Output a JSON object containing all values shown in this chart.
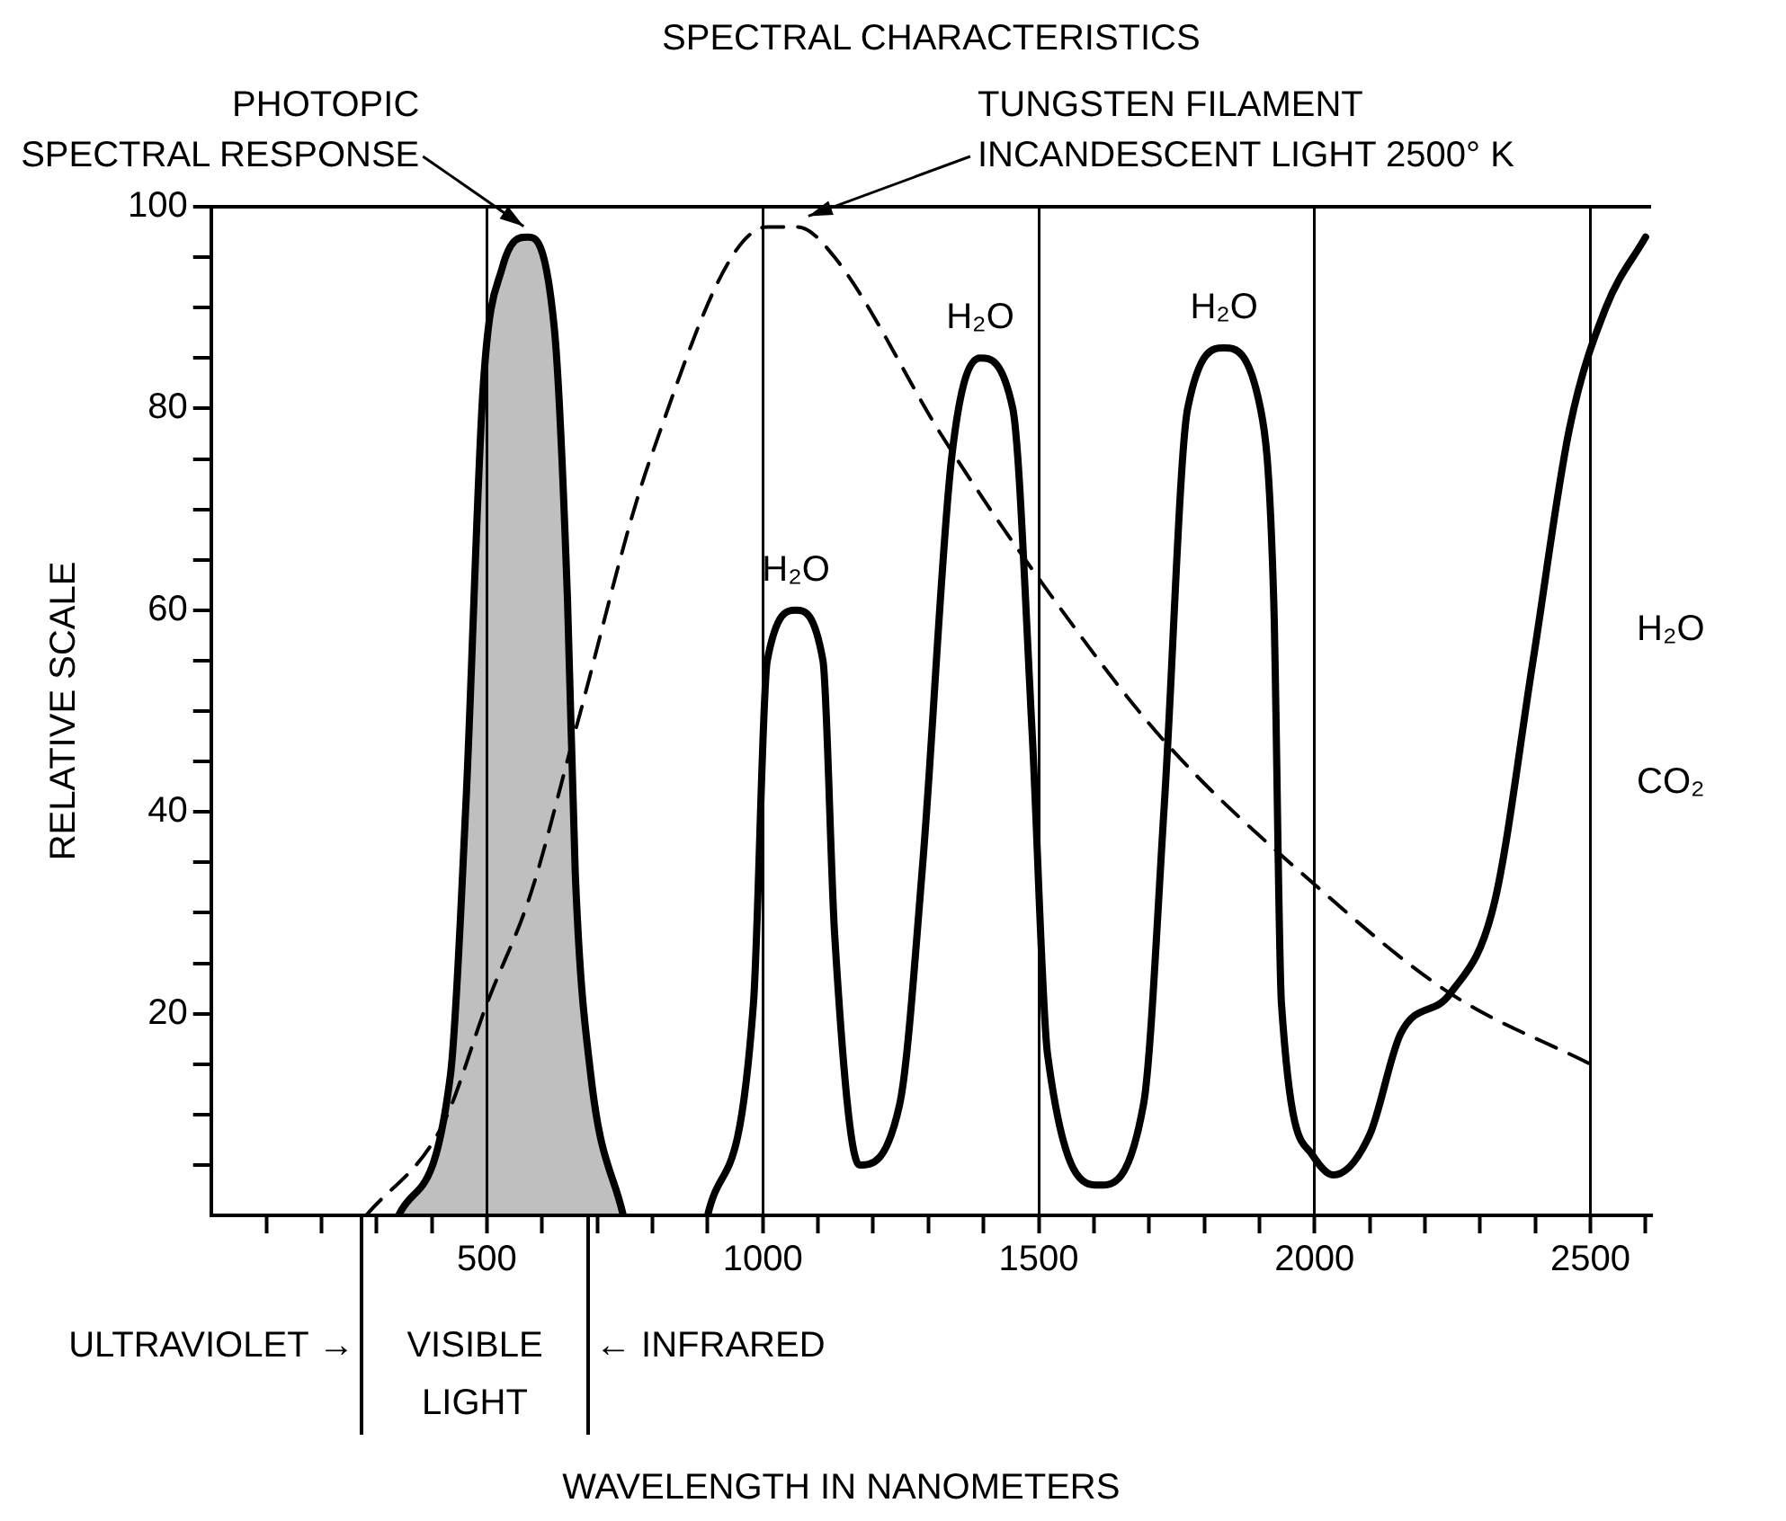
{
  "chart_data": {
    "type": "line",
    "title": "SPECTRAL CHARACTERISTICS",
    "ylabel": "RELATIVE SCALE",
    "xlim": [
      0,
      2610
    ],
    "ylim": [
      0,
      100
    ],
    "xticks": [
      {
        "value": 100,
        "label": null
      },
      {
        "value": 200,
        "label": null
      },
      {
        "value": 300,
        "label": null
      },
      {
        "value": 400,
        "label": null
      },
      500,
      {
        "value": 600,
        "label": null
      },
      {
        "value": 700,
        "label": null
      },
      {
        "value": 800,
        "label": null
      },
      {
        "value": 900,
        "label": null
      },
      1000,
      {
        "value": 1100,
        "label": null
      },
      {
        "value": 1200,
        "label": null
      },
      {
        "value": 1300,
        "label": null
      },
      {
        "value": 1400,
        "label": null
      },
      1500,
      {
        "value": 1600,
        "label": null
      },
      {
        "value": 1700,
        "label": null
      },
      {
        "value": 1800,
        "label": null
      },
      {
        "value": 1900,
        "label": null
      },
      2000,
      {
        "value": 2100,
        "label": null
      },
      {
        "value": 2200,
        "label": null
      },
      {
        "value": 2300,
        "label": null
      },
      {
        "value": 2400,
        "label": null
      },
      2500,
      {
        "value": 2600,
        "label": null
      }
    ],
    "yticks": [
      {
        "value": 5,
        "label": null
      },
      {
        "value": 10,
        "label": null
      },
      {
        "value": 15,
        "label": null
      },
      20,
      {
        "value": 25,
        "label": null
      },
      {
        "value": 30,
        "label": null
      },
      {
        "value": 35,
        "label": null
      },
      40,
      {
        "value": 45,
        "label": null
      },
      {
        "value": 50,
        "label": null
      },
      {
        "value": 55,
        "label": null
      },
      60,
      {
        "value": 65,
        "label": null
      },
      {
        "value": 70,
        "label": null
      },
      {
        "value": 75,
        "label": null
      },
      80,
      {
        "value": 85,
        "label": null
      },
      {
        "value": 90,
        "label": null
      },
      {
        "value": 95,
        "label": null
      },
      100
    ],
    "grid": "x",
    "legend": false,
    "marker": "none",
    "series": [
      {
        "type": "area",
        "color": "#000000",
        "line_style": "solid",
        "x": [
          340,
          434,
          462,
          493,
          528,
          573,
          622,
          646,
          660,
          688,
          747
        ],
        "values": [
          0,
          14,
          41,
          82,
          94,
          97,
          88,
          61,
          34,
          14,
          0
        ]
      },
      {
        "color": "#000000",
        "line_style": "dashed",
        "x": [
          281,
          420,
          500,
          580,
          660,
          796,
          1008,
          1063,
          1130,
          1328,
          1502,
          1728,
          1996,
          2246,
          2500
        ],
        "values": [
          0,
          9,
          21,
          32,
          48,
          75,
          98,
          98,
          95,
          77,
          63,
          47,
          33,
          22,
          15
        ]
      },
      {
        "color": "#000000",
        "line_style": "solid",
        "x": [
          900,
          983,
          1008,
          1060,
          1109,
          1130,
          1175,
          1248,
          1290,
          1342,
          1394,
          1453,
          1488,
          1516,
          1610,
          1690,
          1728,
          1770,
          1836,
          1902,
          1926,
          1940,
          1996,
          2034,
          2100,
          2156,
          2246,
          2326,
          2396,
          2462,
          2528,
          2600
        ],
        "values": [
          0,
          21,
          55,
          60,
          55,
          28,
          5,
          11,
          35,
          75,
          85,
          80,
          48,
          16,
          3,
          11,
          41,
          80,
          86,
          80,
          61,
          21,
          6,
          4,
          8,
          18,
          22,
          31,
          55,
          78,
          90,
          97
        ]
      }
    ],
    "annotations": [
      "ULTRAVIOLET →",
      "VISIBLE\nLIGHT",
      "← INFRARED",
      "H₂O",
      "CO₂",
      "WAVELENGTH IN NANOMETERS",
      {
        "text": "PHOTOPIC\nSPECTRAL RESPONSE",
        "x": 573,
        "y": 97
      },
      {
        "text": "TUNGSTEN FILAMENT\nINCANDESCENT LIGHT 2500° K",
        "x": 1063,
        "y": 98
      },
      {
        "text": "H₂O",
        "x": 1060,
        "y": 60
      },
      {
        "text": "H₂O",
        "x": 1394,
        "y": 85
      },
      {
        "text": "H₂O",
        "x": 1836,
        "y": 86
      }
    ]
  }
}
